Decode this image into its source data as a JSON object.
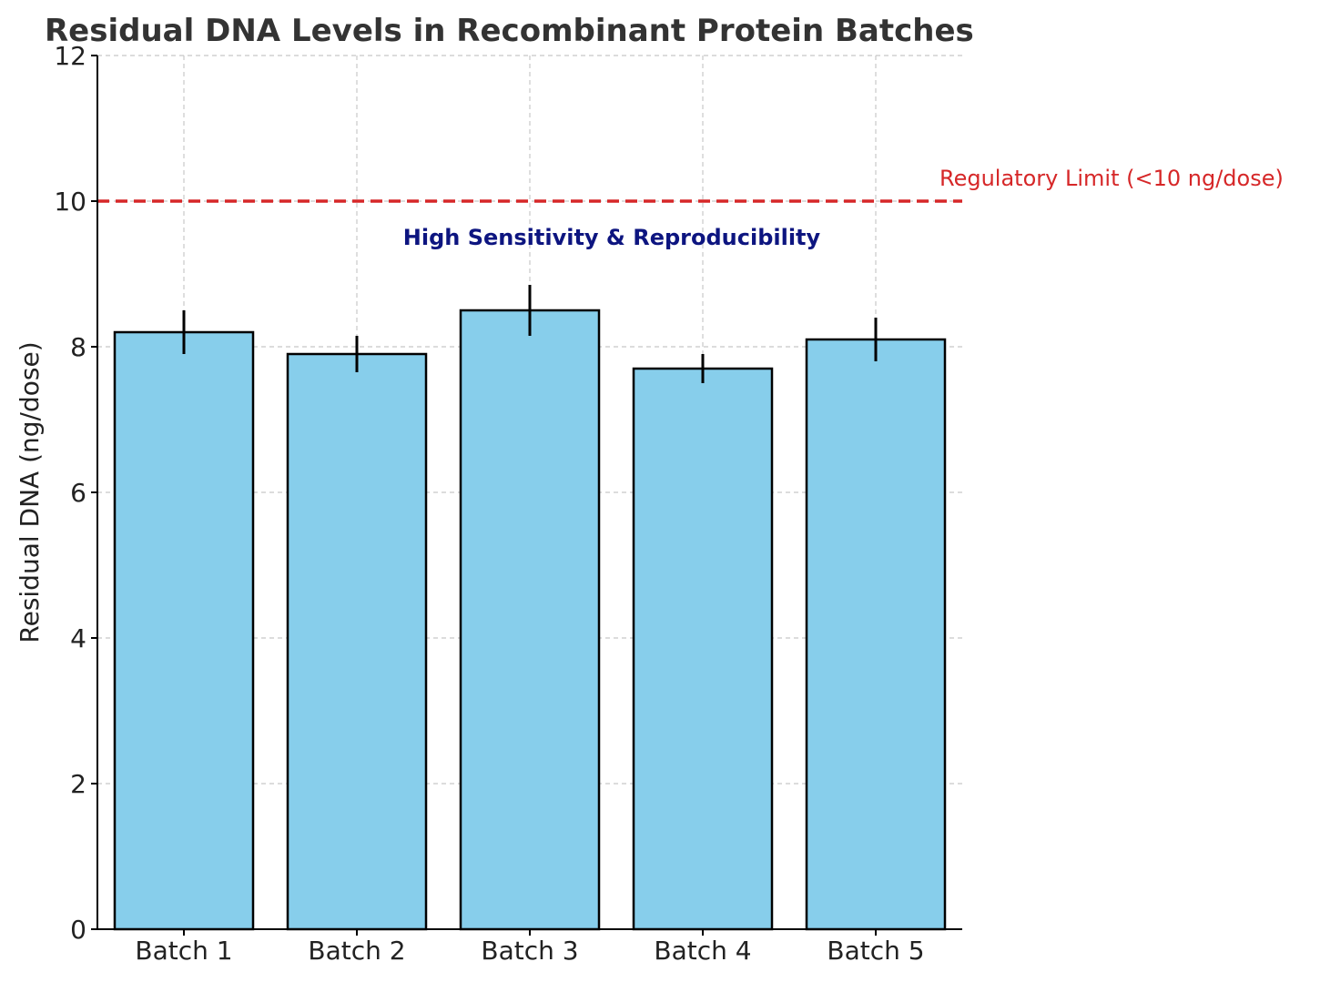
{
  "chart_data": {
    "type": "bar",
    "title": "Residual DNA Levels in Recombinant Protein Batches",
    "xlabel": "",
    "ylabel": "Residual DNA (ng/dose)",
    "ylim": [
      0,
      12
    ],
    "yticks": [
      "0",
      "2",
      "4",
      "6",
      "8",
      "10",
      "12"
    ],
    "categories": [
      "Batch 1",
      "Batch 2",
      "Batch 3",
      "Batch 4",
      "Batch 5"
    ],
    "values": [
      8.2,
      7.9,
      8.5,
      7.7,
      8.1
    ],
    "errors": [
      0.3,
      0.25,
      0.35,
      0.2,
      0.3
    ],
    "grid": true,
    "bar_color": "#87CEEB",
    "bar_edge_color": "#000000",
    "reference_line": {
      "value": 10,
      "label": "Regulatory Limit (<10 ng/dose)",
      "color": "#d62728",
      "style": "dashed"
    },
    "annotation": {
      "text": "High Sensitivity & Reproducibility",
      "color": "#0d1580"
    }
  }
}
